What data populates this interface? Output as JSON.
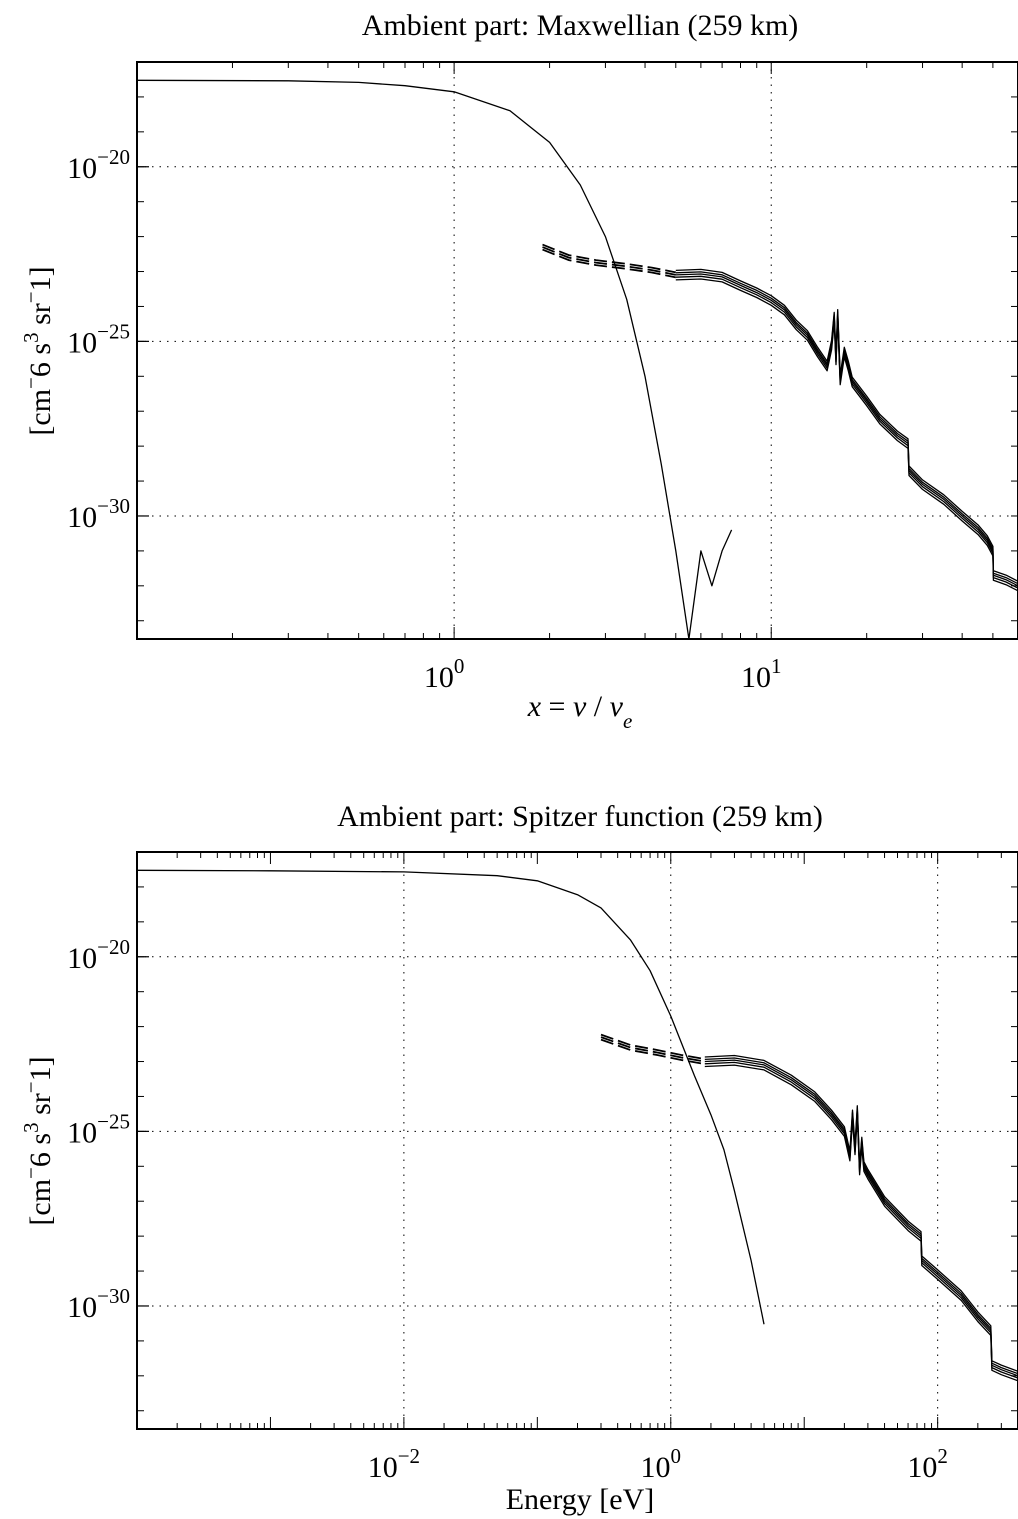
{
  "colors": {
    "background": "#ffffff",
    "ink": "#000000"
  },
  "chart_data": [
    {
      "type": "line",
      "title": "Ambient part: Maxwellian (259 km)",
      "xlabel": {
        "x": "x",
        "eq": " = ",
        "v": "v",
        "slash": " / ",
        "sub": "e"
      },
      "ylabel": {
        "a": "[cm",
        "b": "6 s",
        "c": "3",
        "d": " sr",
        "e": "1]",
        "m": "−"
      },
      "xscale": "log",
      "yscale": "log",
      "xlim": [
        0.1,
        60
      ],
      "ylim": [
        3e-34,
        1e-17
      ],
      "grid": true,
      "xticks": [
        {
          "value": 1,
          "base": "10",
          "exp": "0"
        },
        {
          "value": 10,
          "base": "10",
          "exp": "1"
        }
      ],
      "yticks": [
        {
          "value": 1e-20,
          "base": "10",
          "exp": "−20"
        },
        {
          "value": 1e-25,
          "base": "10",
          "exp": "−25"
        },
        {
          "value": 1e-30,
          "base": "10",
          "exp": "−30"
        }
      ],
      "series": [
        {
          "style": "solid",
          "x": [
            0.1,
            0.3,
            0.5,
            0.7,
            1.0,
            1.5,
            2.0,
            2.5,
            3.0,
            3.5,
            4.0,
            4.5,
            5.0,
            5.5,
            6.0,
            6.5,
            7.0,
            7.5
          ],
          "y": [
            3e-18,
            2.9e-18,
            2.6e-18,
            2.1e-18,
            1.4e-18,
            4e-19,
            5e-20,
            3e-21,
            1e-22,
            1.6e-24,
            1e-26,
            3e-29,
            1e-31,
            1e-34,
            1e-31,
            1e-32,
            1e-31,
            4e-31
          ]
        },
        {
          "style": "dashed",
          "offsets": [
            0.85,
            1,
            1.18
          ],
          "x": [
            1.9,
            2.3,
            2.8,
            3.5,
            4.2,
            5.0
          ],
          "y": [
            5e-23,
            2.5e-23,
            1.8e-23,
            1.4e-23,
            1.1e-23,
            8e-24
          ]
        },
        {
          "style": "solid",
          "offsets": [
            0.72,
            0.86,
            1,
            1.15,
            1.35
          ],
          "x": [
            5.0,
            6.0,
            7.0,
            8.0,
            9.0,
            10.0,
            11.0,
            12.0,
            13.0,
            14.0,
            15.0,
            15.5,
            15.8,
            16.0,
            16.2,
            16.5,
            17.0,
            17.5,
            18.0,
            20.0,
            22.0,
            25.0,
            27.0,
            27.2,
            30.0,
            35.0,
            40.0,
            45.0,
            48.0,
            50.0,
            50.2,
            55.0,
            60.0
          ],
          "y": [
            8e-24,
            8.5e-24,
            7e-24,
            4e-24,
            2.5e-24,
            1.5e-24,
            8e-25,
            3e-25,
            1.5e-25,
            5e-26,
            2e-26,
            8e-26,
            5e-25,
            3e-26,
            6e-25,
            8e-27,
            5e-26,
            2e-26,
            7e-27,
            2e-27,
            6e-28,
            2e-28,
            1.2e-28,
            2e-29,
            8e-30,
            3e-30,
            1e-30,
            4e-31,
            2e-31,
            1e-31,
            2e-32,
            1.5e-32,
            1e-32
          ]
        }
      ]
    },
    {
      "type": "line",
      "title": "Ambient part: Spitzer function (259 km)",
      "xlabel": "Energy [eV]",
      "ylabel": {
        "a": "[cm",
        "b": "6 s",
        "c": "3",
        "d": " sr",
        "e": "1]",
        "m": "−"
      },
      "xscale": "log",
      "yscale": "log",
      "xlim": [
        0.0001,
        400
      ],
      "ylim": [
        3e-34,
        1e-17
      ],
      "grid": true,
      "xticks": [
        {
          "value": 0.01,
          "base": "10",
          "exp": "−2"
        },
        {
          "value": 1,
          "base": "10",
          "exp": "0"
        },
        {
          "value": 100,
          "base": "10",
          "exp": "2"
        }
      ],
      "yticks": [
        {
          "value": 1e-20,
          "base": "10",
          "exp": "−20"
        },
        {
          "value": 1e-25,
          "base": "10",
          "exp": "−25"
        },
        {
          "value": 1e-30,
          "base": "10",
          "exp": "−30"
        }
      ],
      "series": [
        {
          "style": "solid",
          "x": [
            0.0001,
            0.001,
            0.01,
            0.05,
            0.1,
            0.2,
            0.3,
            0.5,
            0.7,
            1.0,
            1.5,
            2.0,
            2.5,
            3.0,
            4.0,
            5.0
          ],
          "y": [
            3e-18,
            2.9e-18,
            2.7e-18,
            2.1e-18,
            1.5e-18,
            6e-19,
            2.5e-19,
            3e-20,
            4e-21,
            2e-22,
            4e-24,
            3e-25,
            3e-26,
            2e-27,
            2e-29,
            3e-31
          ]
        },
        {
          "style": "dashed",
          "offsets": [
            0.85,
            1,
            1.18
          ],
          "x": [
            0.3,
            0.5,
            0.8,
            1.2,
            1.8
          ],
          "y": [
            5e-23,
            2.5e-23,
            1.8e-23,
            1.3e-23,
            1e-23
          ]
        },
        {
          "style": "solid",
          "offsets": [
            0.72,
            0.86,
            1,
            1.15,
            1.35
          ],
          "x": [
            1.8,
            3.0,
            5.0,
            8.0,
            12.0,
            16.0,
            20.0,
            22.0,
            23.0,
            24.0,
            25.0,
            26.0,
            27.0,
            28.0,
            30.0,
            40.0,
            60.0,
            75.0,
            76.0,
            100.0,
            150.0,
            200.0,
            250.0,
            255.0,
            300.0,
            400.0
          ],
          "y": [
            1e-23,
            1.1e-23,
            8e-24,
            3e-24,
            1e-24,
            3e-25,
            1e-25,
            2e-26,
            3e-25,
            3e-26,
            4e-25,
            8e-27,
            5e-26,
            1e-26,
            6e-27,
            1e-27,
            2e-28,
            1e-28,
            2e-29,
            8e-30,
            2e-30,
            5e-31,
            2e-31,
            2e-32,
            1.5e-32,
            1e-32
          ]
        }
      ]
    }
  ]
}
